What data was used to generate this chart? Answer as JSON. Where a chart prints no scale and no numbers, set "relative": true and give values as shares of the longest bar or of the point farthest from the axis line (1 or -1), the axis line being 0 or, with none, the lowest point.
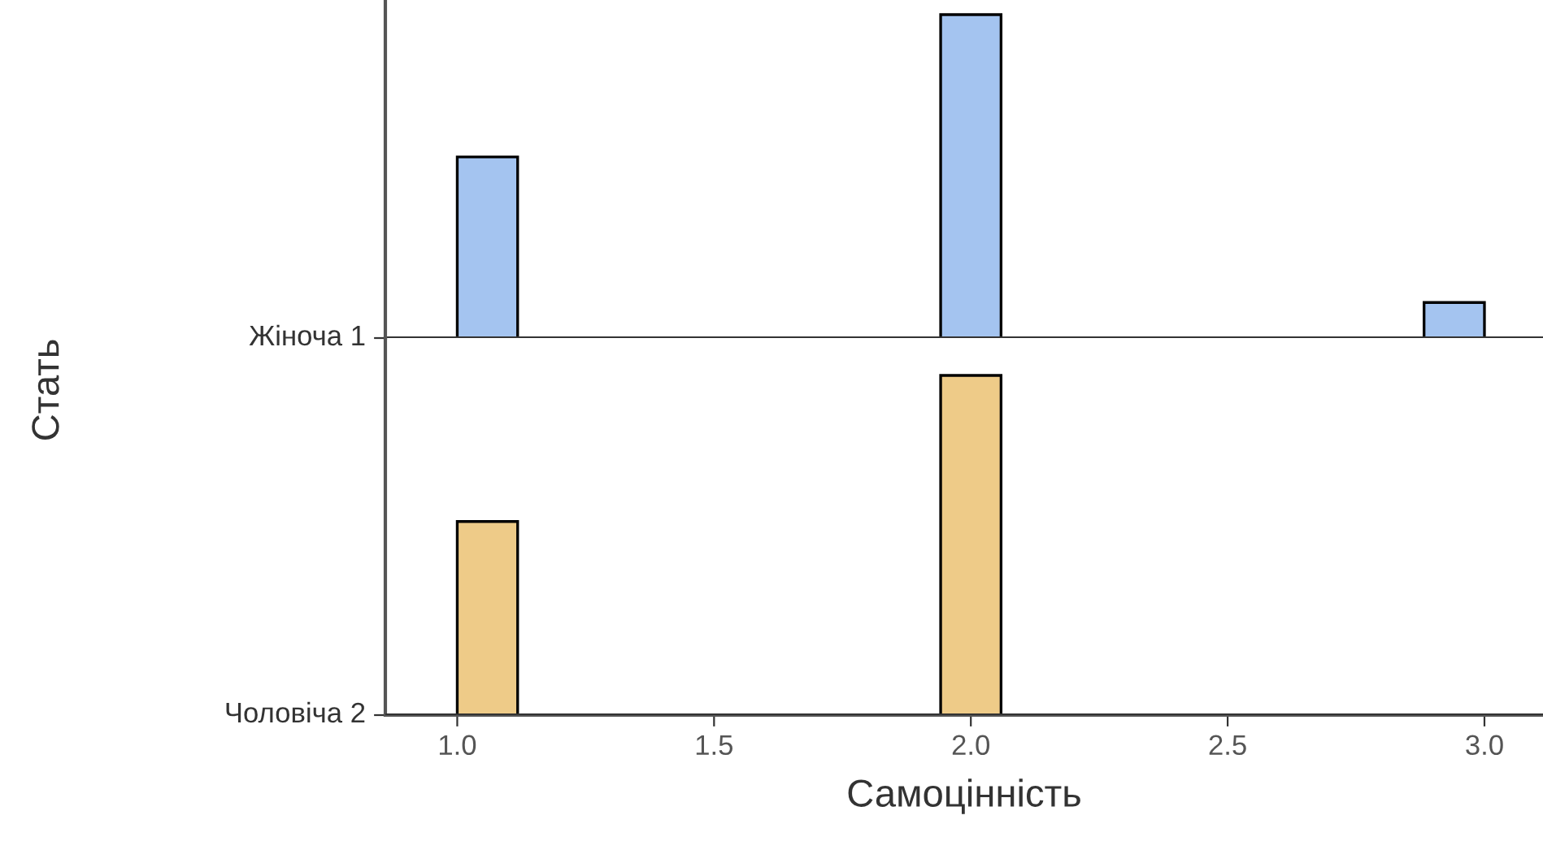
{
  "chart_data": [
    {
      "type": "bar",
      "ylabel": "Стать",
      "relative": true,
      "tick_labels": false,
      "x": [
        1.0588,
        2.0,
        2.9412
      ],
      "series": [
        {
          "name": "Жіноча 1",
          "color": "#a4c4f0",
          "values": [
            0.56,
            1.0,
            0.11
          ]
        }
      ],
      "xlim": [
        0.86,
        3.114
      ]
    },
    {
      "type": "bar",
      "xlabel": "Самоцінність",
      "relative": true,
      "x": [
        1.0588,
        2.0
      ],
      "series": [
        {
          "name": "Чоловіча 2",
          "color": "#eecb88",
          "values": [
            0.57,
            1.0
          ]
        }
      ],
      "xlim": [
        0.86,
        3.114
      ],
      "xticks": [
        {
          "value": 1.0,
          "label": "1.0"
        },
        {
          "value": 1.5,
          "label": "1.5"
        },
        {
          "value": 2.0,
          "label": "2.0"
        },
        {
          "value": 2.5,
          "label": "2.5"
        },
        {
          "value": 3.0,
          "label": "3.0"
        }
      ]
    }
  ]
}
